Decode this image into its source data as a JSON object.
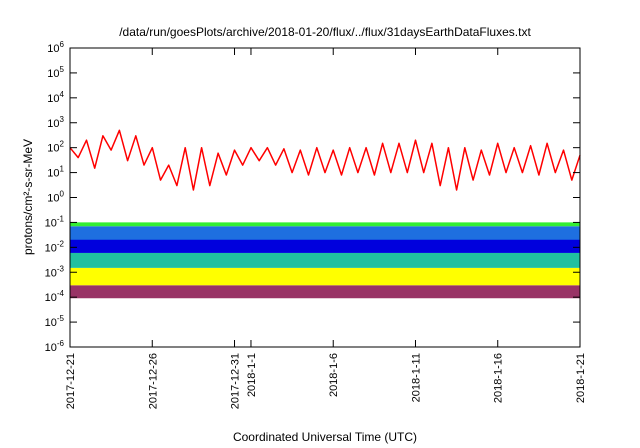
{
  "chart_data": {
    "type": "line",
    "title": "/data/run/goesPlots/archive/2018-01-20/flux/../flux/31daysEarthDataFluxes.txt",
    "xlabel": "Coordinated Universal Time (UTC)",
    "ylabel": "protons/cm²-s-sr-MeV",
    "yscale": "log",
    "ylim": [
      1e-06,
      1000000.0
    ],
    "xlim": [
      "2017-12-21",
      "2018-01-21"
    ],
    "grid": false,
    "legend": "none",
    "x_ticks": [
      {
        "date": "2017-12-21",
        "label": "2017-12-21"
      },
      {
        "date": "2017-12-26",
        "label": "2017-12-26"
      },
      {
        "date": "2017-12-31",
        "label": "2017-12-31"
      },
      {
        "date": "2018-01-01",
        "label": "2018-1-1"
      },
      {
        "date": "2018-01-06",
        "label": "2018-1-6"
      },
      {
        "date": "2018-01-11",
        "label": "2018-1-11"
      },
      {
        "date": "2018-01-16",
        "label": "2018-1-16"
      },
      {
        "date": "2018-01-21",
        "label": "2018-1-21"
      }
    ],
    "y_ticks": [
      {
        "value": 1e-06,
        "base": "10",
        "exp": "-6"
      },
      {
        "value": 1e-05,
        "base": "10",
        "exp": "-5"
      },
      {
        "value": 0.0001,
        "base": "10",
        "exp": "-4"
      },
      {
        "value": 0.001,
        "base": "10",
        "exp": "-3"
      },
      {
        "value": 0.01,
        "base": "10",
        "exp": "-2"
      },
      {
        "value": 0.1,
        "base": "10",
        "exp": "-1"
      },
      {
        "value": 1,
        "base": "10",
        "exp": "0"
      },
      {
        "value": 10,
        "base": "10",
        "exp": "1"
      },
      {
        "value": 100,
        "base": "10",
        "exp": "2"
      },
      {
        "value": 1000,
        "base": "10",
        "exp": "3"
      },
      {
        "value": 10000.0,
        "base": "10",
        "exp": "4"
      },
      {
        "value": 100000.0,
        "base": "10",
        "exp": "5"
      },
      {
        "value": 1000000.0,
        "base": "10",
        "exp": "6"
      }
    ],
    "series": [
      {
        "color": "#993366",
        "x": [
          "2017-12-21",
          "2018-01-21"
        ],
        "low": [
          9e-05,
          9e-05
        ],
        "high": [
          0.0003,
          0.0003
        ]
      },
      {
        "color": "#ffff00",
        "x": [
          "2017-12-21",
          "2018-01-21"
        ],
        "low": [
          0.0003,
          0.0003
        ],
        "high": [
          0.0015,
          0.0015
        ]
      },
      {
        "color": "#20c0a0",
        "x": [
          "2017-12-21",
          "2018-01-21"
        ],
        "low": [
          0.0015,
          0.0015
        ],
        "high": [
          0.006,
          0.006
        ]
      },
      {
        "color": "#1e6fe0",
        "x": [
          "2017-12-21",
          "2018-01-21"
        ],
        "low": [
          0.006,
          0.006
        ],
        "high": [
          0.07,
          0.07
        ]
      },
      {
        "color": "#33ee33",
        "x": [
          "2017-12-21",
          "2018-01-21"
        ],
        "low": [
          0.07,
          0.07
        ],
        "high": [
          0.1,
          0.1
        ]
      },
      {
        "color": "#0000dd",
        "x": [
          "2017-12-21",
          "2018-01-21"
        ],
        "low": [
          0.006,
          0.006
        ],
        "high": [
          0.02,
          0.02
        ]
      },
      {
        "color": "#ff0000",
        "x": [
          "2017-12-21",
          "2017-12-21T12:00",
          "2017-12-22",
          "2017-12-22T12:00",
          "2017-12-23",
          "2017-12-23T12:00",
          "2017-12-24",
          "2017-12-24T12:00",
          "2017-12-25",
          "2017-12-25T12:00",
          "2017-12-26",
          "2017-12-26T12:00",
          "2017-12-27",
          "2017-12-27T12:00",
          "2017-12-28",
          "2017-12-28T12:00",
          "2017-12-29",
          "2017-12-29T12:00",
          "2017-12-30",
          "2017-12-30T12:00",
          "2017-12-31",
          "2017-12-31T12:00",
          "2018-01-01",
          "2018-01-01T12:00",
          "2018-01-02",
          "2018-01-02T12:00",
          "2018-01-03",
          "2018-01-03T12:00",
          "2018-01-04",
          "2018-01-04T12:00",
          "2018-01-05",
          "2018-01-05T12:00",
          "2018-01-06",
          "2018-01-06T12:00",
          "2018-01-07",
          "2018-01-07T12:00",
          "2018-01-08",
          "2018-01-08T12:00",
          "2018-01-09",
          "2018-01-09T12:00",
          "2018-01-10",
          "2018-01-10T12:00",
          "2018-01-11",
          "2018-01-11T12:00",
          "2018-01-12",
          "2018-01-12T12:00",
          "2018-01-13",
          "2018-01-13T12:00",
          "2018-01-14",
          "2018-01-14T12:00",
          "2018-01-15",
          "2018-01-15T12:00",
          "2018-01-16",
          "2018-01-16T12:00",
          "2018-01-17",
          "2018-01-17T12:00",
          "2018-01-18",
          "2018-01-18T12:00",
          "2018-01-19",
          "2018-01-19T12:00",
          "2018-01-20",
          "2018-01-20T12:00",
          "2018-01-21"
        ],
        "y": [
          100,
          40,
          200,
          15,
          300,
          80,
          500,
          30,
          300,
          20,
          100,
          5,
          20,
          3,
          100,
          2,
          100,
          3,
          60,
          8,
          80,
          20,
          100,
          30,
          100,
          20,
          90,
          10,
          80,
          8,
          100,
          10,
          80,
          8,
          100,
          10,
          100,
          8,
          150,
          10,
          150,
          10,
          200,
          10,
          150,
          3,
          100,
          2,
          100,
          5,
          80,
          8,
          150,
          10,
          100,
          10,
          120,
          8,
          150,
          10,
          80,
          5,
          50
        ]
      }
    ]
  }
}
